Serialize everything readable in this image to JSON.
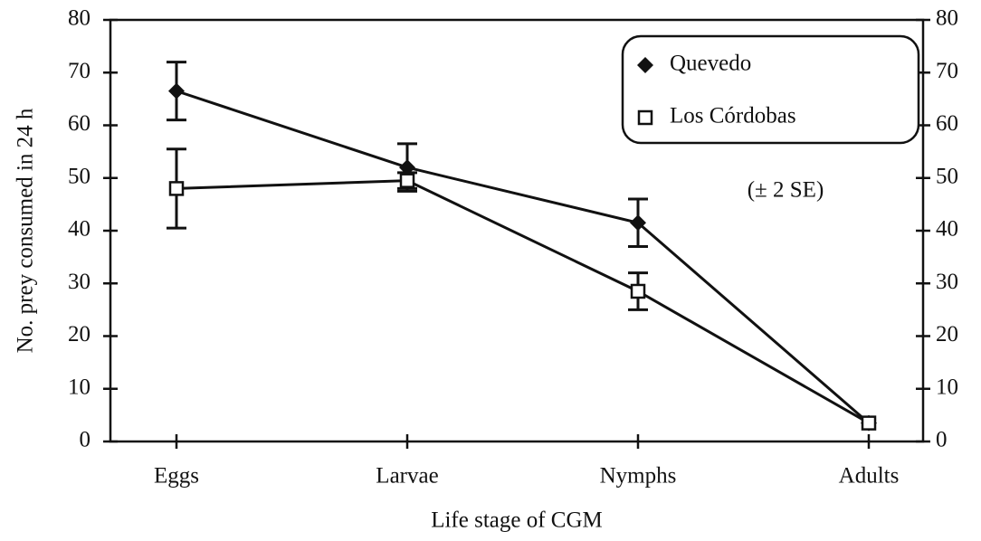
{
  "chart_data": {
    "type": "line",
    "ylabel": "No. prey consumed in 24 h",
    "xlabel": "Life stage of CGM",
    "annotation": "(± 2 SE)",
    "categories": [
      "Eggs",
      "Larvae",
      "Nymphs",
      "Adults"
    ],
    "series": [
      {
        "name": "Quevedo",
        "color": "#111111",
        "marker": "diamond",
        "values": [
          66.5,
          52,
          41.5,
          3.5
        ],
        "errors": [
          5.5,
          4.5,
          4.5,
          null
        ]
      },
      {
        "name": "Los Córdobas",
        "color": "#111111",
        "marker": "open-square",
        "values": [
          48,
          49.5,
          28.5,
          3.5
        ],
        "errors": [
          7.5,
          1.5,
          3.5,
          null
        ]
      }
    ],
    "ylim": [
      0,
      80
    ],
    "yticks": [
      0,
      10,
      20,
      30,
      40,
      50,
      60,
      70,
      80
    ],
    "y2lim": [
      0,
      80
    ],
    "y2ticks": [
      0,
      10,
      20,
      30,
      40,
      50,
      60,
      70,
      80
    ],
    "legend": "upper right"
  }
}
